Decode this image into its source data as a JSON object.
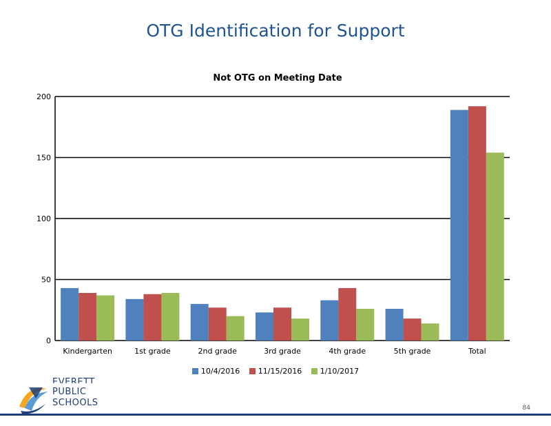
{
  "slide": {
    "title": "OTG Identification for Support",
    "page_number": "84"
  },
  "logo": {
    "line1": "EVERETT",
    "line2": "PUBLIC",
    "line3": "SCHOOLS"
  },
  "colors": {
    "title": "#1F5492",
    "series": [
      "#4F81BD",
      "#C0504D",
      "#9BBB59"
    ]
  },
  "chart_data": {
    "type": "bar",
    "title": "Not OTG on Meeting Date",
    "xlabel": "",
    "ylabel": "",
    "categories": [
      "Kindergarten",
      "1st grade",
      "2nd grade",
      "3rd grade",
      "4th grade",
      "5th grade",
      "Total"
    ],
    "series": [
      {
        "name": "10/4/2016",
        "values": [
          43,
          34,
          30,
          23,
          33,
          26,
          189
        ]
      },
      {
        "name": "11/15/2016",
        "values": [
          39,
          38,
          27,
          27,
          43,
          18,
          192
        ]
      },
      {
        "name": "1/10/2017",
        "values": [
          37,
          39,
          20,
          18,
          26,
          14,
          154
        ]
      }
    ],
    "ylim": [
      0,
      200
    ],
    "yticks": [
      0,
      50,
      100,
      150,
      200
    ],
    "grid": true,
    "legend": "bottom"
  }
}
